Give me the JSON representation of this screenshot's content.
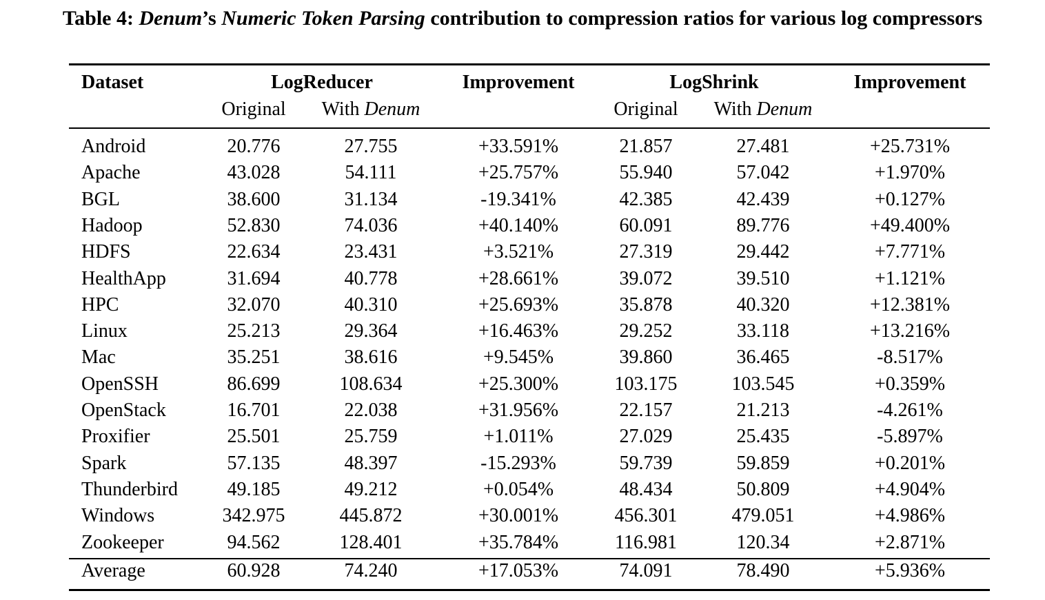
{
  "caption": {
    "prefix": "Table 4: ",
    "denum": "Denum",
    "apostrophe": "’s ",
    "feature": "Numeric Token Parsing",
    "suffix": " contribution to compression ratios for various log compressors"
  },
  "header": {
    "dataset": "Dataset",
    "logreducer": "LogReducer",
    "improvement1": "Improvement",
    "logshrink": "LogShrink",
    "improvement2": "Improvement",
    "original": "Original",
    "with_prefix": "With ",
    "with_denum": "Denum"
  },
  "rows": [
    {
      "dataset": "Android",
      "lr_orig": "20.776",
      "lr_denum": "27.755",
      "lr_imp": "+33.591%",
      "ls_orig": "21.857",
      "ls_denum": "27.481",
      "ls_imp": "+25.731%"
    },
    {
      "dataset": "Apache",
      "lr_orig": "43.028",
      "lr_denum": "54.111",
      "lr_imp": "+25.757%",
      "ls_orig": "55.940",
      "ls_denum": "57.042",
      "ls_imp": "+1.970%"
    },
    {
      "dataset": "BGL",
      "lr_orig": "38.600",
      "lr_denum": "31.134",
      "lr_imp": "-19.341%",
      "ls_orig": "42.385",
      "ls_denum": "42.439",
      "ls_imp": "+0.127%"
    },
    {
      "dataset": "Hadoop",
      "lr_orig": "52.830",
      "lr_denum": "74.036",
      "lr_imp": "+40.140%",
      "ls_orig": "60.091",
      "ls_denum": "89.776",
      "ls_imp": "+49.400%"
    },
    {
      "dataset": "HDFS",
      "lr_orig": "22.634",
      "lr_denum": "23.431",
      "lr_imp": "+3.521%",
      "ls_orig": "27.319",
      "ls_denum": "29.442",
      "ls_imp": "+7.771%"
    },
    {
      "dataset": "HealthApp",
      "lr_orig": "31.694",
      "lr_denum": "40.778",
      "lr_imp": "+28.661%",
      "ls_orig": "39.072",
      "ls_denum": "39.510",
      "ls_imp": "+1.121%"
    },
    {
      "dataset": "HPC",
      "lr_orig": "32.070",
      "lr_denum": "40.310",
      "lr_imp": "+25.693%",
      "ls_orig": "35.878",
      "ls_denum": "40.320",
      "ls_imp": "+12.381%"
    },
    {
      "dataset": "Linux",
      "lr_orig": "25.213",
      "lr_denum": "29.364",
      "lr_imp": "+16.463%",
      "ls_orig": "29.252",
      "ls_denum": "33.118",
      "ls_imp": "+13.216%"
    },
    {
      "dataset": "Mac",
      "lr_orig": "35.251",
      "lr_denum": "38.616",
      "lr_imp": "+9.545%",
      "ls_orig": "39.860",
      "ls_denum": "36.465",
      "ls_imp": "-8.517%"
    },
    {
      "dataset": "OpenSSH",
      "lr_orig": "86.699",
      "lr_denum": "108.634",
      "lr_imp": "+25.300%",
      "ls_orig": "103.175",
      "ls_denum": "103.545",
      "ls_imp": "+0.359%"
    },
    {
      "dataset": "OpenStack",
      "lr_orig": "16.701",
      "lr_denum": "22.038",
      "lr_imp": "+31.956%",
      "ls_orig": "22.157",
      "ls_denum": "21.213",
      "ls_imp": "-4.261%"
    },
    {
      "dataset": "Proxifier",
      "lr_orig": "25.501",
      "lr_denum": "25.759",
      "lr_imp": "+1.011%",
      "ls_orig": "27.029",
      "ls_denum": "25.435",
      "ls_imp": "-5.897%"
    },
    {
      "dataset": "Spark",
      "lr_orig": "57.135",
      "lr_denum": "48.397",
      "lr_imp": "-15.293%",
      "ls_orig": "59.739",
      "ls_denum": "59.859",
      "ls_imp": "+0.201%"
    },
    {
      "dataset": "Thunderbird",
      "lr_orig": "49.185",
      "lr_denum": "49.212",
      "lr_imp": "+0.054%",
      "ls_orig": "48.434",
      "ls_denum": "50.809",
      "ls_imp": "+4.904%"
    },
    {
      "dataset": "Windows",
      "lr_orig": "342.975",
      "lr_denum": "445.872",
      "lr_imp": "+30.001%",
      "ls_orig": "456.301",
      "ls_denum": "479.051",
      "ls_imp": "+4.986%"
    },
    {
      "dataset": "Zookeeper",
      "lr_orig": "94.562",
      "lr_denum": "128.401",
      "lr_imp": "+35.784%",
      "ls_orig": "116.981",
      "ls_denum": "120.34",
      "ls_imp": "+2.871%"
    }
  ],
  "average": {
    "dataset": "Average",
    "lr_orig": "60.928",
    "lr_denum": "74.240",
    "lr_imp": "+17.053%",
    "ls_orig": "74.091",
    "ls_denum": "78.490",
    "ls_imp": "+5.936%"
  }
}
